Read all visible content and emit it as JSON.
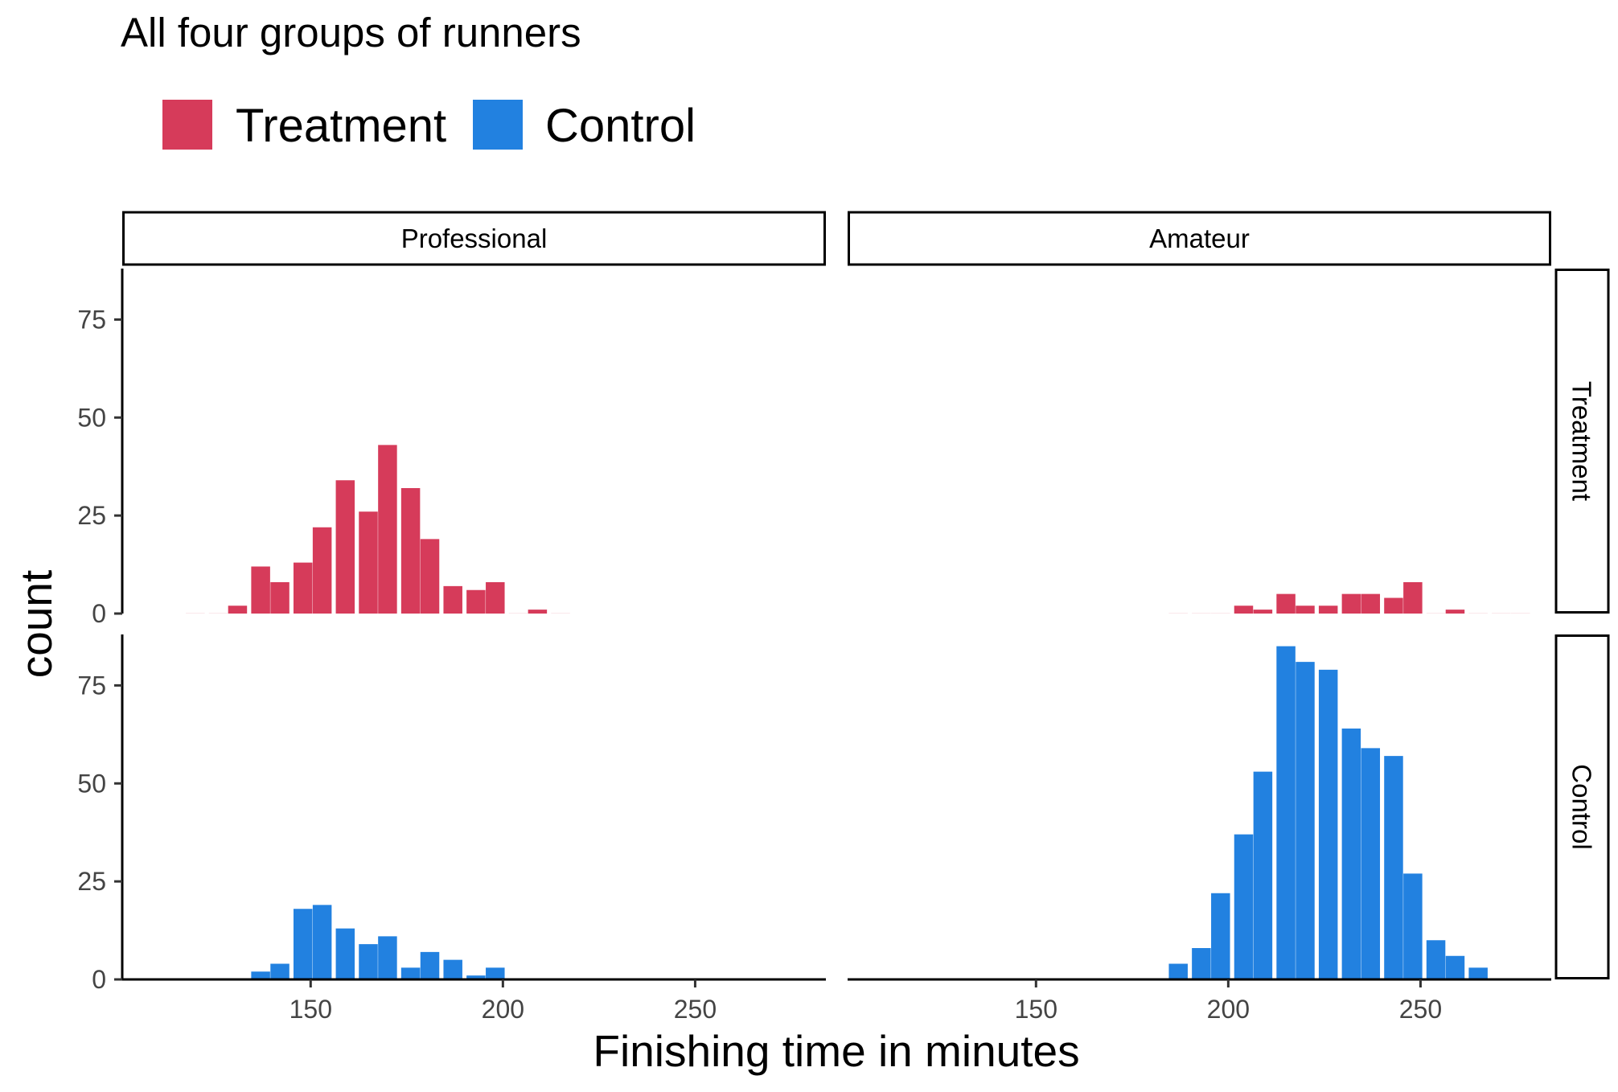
{
  "chart_data": {
    "type": "bar",
    "title": "All four groups of runners",
    "xlabel": "Finishing time in minutes",
    "ylabel": "count",
    "legend": {
      "position": "top-left",
      "entries": [
        {
          "name": "Treatment",
          "color": "#D63B5A"
        },
        {
          "name": "Control",
          "color": "#2281E0"
        }
      ]
    },
    "xlim": [
      101,
      284
    ],
    "ylim": [
      0,
      88
    ],
    "xticks": [
      150,
      200,
      250
    ],
    "yticks": [
      0,
      25,
      50,
      75
    ],
    "grid": false,
    "facets": {
      "columns": [
        "Professional",
        "Amateur"
      ],
      "rows": [
        "Treatment",
        "Control"
      ]
    },
    "panels": [
      {
        "column": "Professional",
        "row": "Treatment",
        "color": "#D63B5A",
        "bars": [
          {
            "x": 120,
            "y": 0
          },
          {
            "x": 126,
            "y": 0
          },
          {
            "x": 131,
            "y": 2
          },
          {
            "x": 137,
            "y": 12
          },
          {
            "x": 142,
            "y": 8
          },
          {
            "x": 148,
            "y": 13
          },
          {
            "x": 153,
            "y": 22
          },
          {
            "x": 159,
            "y": 34
          },
          {
            "x": 165,
            "y": 26
          },
          {
            "x": 170,
            "y": 43
          },
          {
            "x": 176,
            "y": 32
          },
          {
            "x": 181,
            "y": 19
          },
          {
            "x": 187,
            "y": 7
          },
          {
            "x": 193,
            "y": 6
          },
          {
            "x": 198,
            "y": 8
          },
          {
            "x": 204,
            "y": 0
          },
          {
            "x": 209,
            "y": 1
          },
          {
            "x": 215,
            "y": 0
          }
        ]
      },
      {
        "column": "Amateur",
        "row": "Treatment",
        "color": "#D63B5A",
        "bars": [
          {
            "x": 187,
            "y": 0
          },
          {
            "x": 193,
            "y": 0
          },
          {
            "x": 198,
            "y": 0
          },
          {
            "x": 204,
            "y": 2
          },
          {
            "x": 209,
            "y": 1
          },
          {
            "x": 215,
            "y": 5
          },
          {
            "x": 220,
            "y": 2
          },
          {
            "x": 226,
            "y": 2
          },
          {
            "x": 232,
            "y": 5
          },
          {
            "x": 237,
            "y": 5
          },
          {
            "x": 243,
            "y": 4
          },
          {
            "x": 248,
            "y": 8
          },
          {
            "x": 254,
            "y": 0
          },
          {
            "x": 259,
            "y": 1
          },
          {
            "x": 265,
            "y": 0
          },
          {
            "x": 271,
            "y": 0
          },
          {
            "x": 276,
            "y": 0
          }
        ]
      },
      {
        "column": "Professional",
        "row": "Control",
        "color": "#2281E0",
        "bars": [
          {
            "x": 126,
            "y": 0
          },
          {
            "x": 131,
            "y": 0
          },
          {
            "x": 137,
            "y": 2
          },
          {
            "x": 142,
            "y": 4
          },
          {
            "x": 148,
            "y": 18
          },
          {
            "x": 153,
            "y": 19
          },
          {
            "x": 159,
            "y": 13
          },
          {
            "x": 165,
            "y": 9
          },
          {
            "x": 170,
            "y": 11
          },
          {
            "x": 176,
            "y": 3
          },
          {
            "x": 181,
            "y": 7
          },
          {
            "x": 187,
            "y": 5
          },
          {
            "x": 193,
            "y": 1
          },
          {
            "x": 198,
            "y": 3
          },
          {
            "x": 204,
            "y": 0
          },
          {
            "x": 209,
            "y": 0
          },
          {
            "x": 215,
            "y": 0
          }
        ]
      },
      {
        "column": "Amateur",
        "row": "Control",
        "color": "#2281E0",
        "bars": [
          {
            "x": 181,
            "y": 0
          },
          {
            "x": 187,
            "y": 4
          },
          {
            "x": 193,
            "y": 8
          },
          {
            "x": 198,
            "y": 22
          },
          {
            "x": 204,
            "y": 37
          },
          {
            "x": 209,
            "y": 53
          },
          {
            "x": 215,
            "y": 85
          },
          {
            "x": 220,
            "y": 81
          },
          {
            "x": 226,
            "y": 79
          },
          {
            "x": 232,
            "y": 64
          },
          {
            "x": 237,
            "y": 59
          },
          {
            "x": 243,
            "y": 57
          },
          {
            "x": 248,
            "y": 27
          },
          {
            "x": 254,
            "y": 10
          },
          {
            "x": 259,
            "y": 6
          },
          {
            "x": 265,
            "y": 3
          },
          {
            "x": 271,
            "y": 0
          }
        ]
      }
    ]
  }
}
